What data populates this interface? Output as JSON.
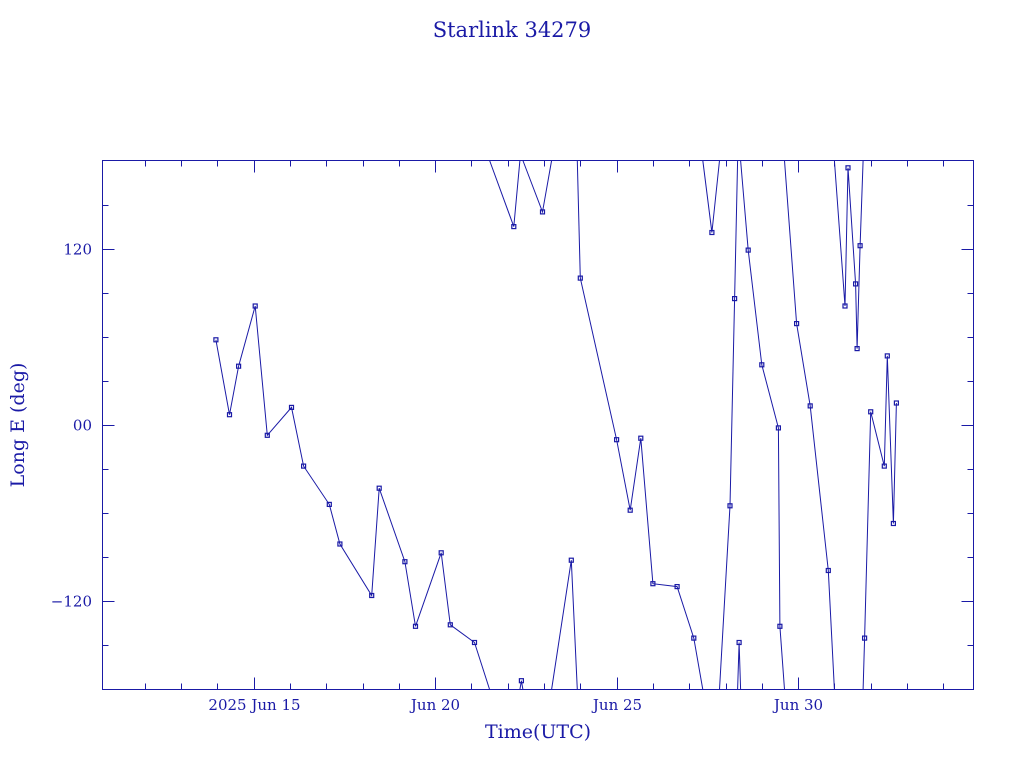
{
  "chart_data": {
    "type": "line",
    "title": "Starlink 34279",
    "xlabel": "Time(UTC)",
    "ylabel": "Long E (deg)",
    "x_unit": "date",
    "xlim": [
      "2025-06-10T20:00",
      "2025-07-04T20:00"
    ],
    "ylim": [
      -180,
      180
    ],
    "y_wrap": true,
    "x_tick_labels": [
      {
        "x": "2025-06-15T00:00",
        "label": "2025 Jun 15"
      },
      {
        "x": "2025-06-20T00:00",
        "label": "Jun 20"
      },
      {
        "x": "2025-06-25T00:00",
        "label": "Jun 25"
      },
      {
        "x": "2025-06-30T00:00",
        "label": "Jun 30"
      }
    ],
    "x_minor_ticks": [
      "2025-06-12T00:00",
      "2025-06-13T00:00",
      "2025-06-14T00:00",
      "2025-06-16T00:00",
      "2025-06-17T00:00",
      "2025-06-18T00:00",
      "2025-06-19T00:00",
      "2025-06-21T00:00",
      "2025-06-22T00:00",
      "2025-06-23T00:00",
      "2025-06-24T00:00",
      "2025-06-26T00:00",
      "2025-06-27T00:00",
      "2025-06-28T00:00",
      "2025-06-29T00:00",
      "2025-07-01T00:00",
      "2025-07-02T00:00",
      "2025-07-03T00:00",
      "2025-07-04T00:00"
    ],
    "y_tick_labels": [
      {
        "y": 120,
        "label": "120"
      },
      {
        "y": 0,
        "label": "00"
      },
      {
        "y": -120,
        "label": "−120"
      }
    ],
    "y_minor_ticks": [
      150,
      90,
      60,
      30,
      -30,
      -60,
      -90,
      -150
    ],
    "grid": false,
    "color": "#1a1aa6",
    "series": [
      {
        "points": [
          {
            "x": "2025-06-13T23:00",
            "y": 58
          },
          {
            "x": "2025-06-14T08:00",
            "y": 7
          },
          {
            "x": "2025-06-14T14:00",
            "y": 40
          },
          {
            "x": "2025-06-15T01:00",
            "y": 81
          },
          {
            "x": "2025-06-15T09:00",
            "y": -7
          },
          {
            "x": "2025-06-16T01:00",
            "y": 12
          },
          {
            "x": "2025-06-16T09:00",
            "y": -28
          },
          {
            "x": "2025-06-17T02:00",
            "y": -54
          },
          {
            "x": "2025-06-17T09:00",
            "y": -81
          },
          {
            "x": "2025-06-18T06:00",
            "y": -116
          },
          {
            "x": "2025-06-18T11:00",
            "y": -43
          },
          {
            "x": "2025-06-19T04:00",
            "y": -93
          },
          {
            "x": "2025-06-19T11:00",
            "y": -137
          },
          {
            "x": "2025-06-20T04:00",
            "y": -87
          },
          {
            "x": "2025-06-20T10:00",
            "y": -136
          },
          {
            "x": "2025-06-21T02:00",
            "y": -148
          },
          {
            "x": "2025-06-21T12:00",
            "y": -180
          },
          {
            "x": "2025-06-21T12:00",
            "y": 180
          },
          {
            "x": "2025-06-22T04:00",
            "y": 135
          },
          {
            "x": "2025-06-22T08:00",
            "y": 180
          },
          {
            "x": "2025-06-22T08:00",
            "y": -180
          },
          {
            "x": "2025-06-22T09:00",
            "y": -174
          },
          {
            "x": "2025-06-22T10:00",
            "y": -180
          },
          {
            "x": "2025-06-22T10:00",
            "y": 180
          },
          {
            "x": "2025-06-22T23:00",
            "y": 145
          },
          {
            "x": "2025-06-23T05:00",
            "y": 180
          },
          {
            "x": "2025-06-23T05:00",
            "y": -180
          },
          {
            "x": "2025-06-23T18:00",
            "y": -92
          },
          {
            "x": "2025-06-23T22:00",
            "y": -180
          },
          {
            "x": "2025-06-23T22:00",
            "y": 180
          },
          {
            "x": "2025-06-24T00:00",
            "y": 100
          },
          {
            "x": "2025-06-25T00:00",
            "y": -10
          },
          {
            "x": "2025-06-25T09:00",
            "y": -58
          },
          {
            "x": "2025-06-25T16:00",
            "y": -9
          },
          {
            "x": "2025-06-26T00:00",
            "y": -108
          },
          {
            "x": "2025-06-26T16:00",
            "y": -110
          },
          {
            "x": "2025-06-27T03:00",
            "y": -145
          },
          {
            "x": "2025-06-27T09:00",
            "y": -180
          },
          {
            "x": "2025-06-27T09:00",
            "y": 180
          },
          {
            "x": "2025-06-27T15:00",
            "y": 131
          },
          {
            "x": "2025-06-27T20:00",
            "y": 180
          },
          {
            "x": "2025-06-27T20:00",
            "y": -180
          },
          {
            "x": "2025-06-28T03:00",
            "y": -55
          },
          {
            "x": "2025-06-28T06:00",
            "y": 86
          },
          {
            "x": "2025-06-28T08:00",
            "y": 180
          },
          {
            "x": "2025-06-28T08:00",
            "y": -180
          },
          {
            "x": "2025-06-28T09:00",
            "y": -148
          },
          {
            "x": "2025-06-28T10:00",
            "y": -180
          },
          {
            "x": "2025-06-28T10:00",
            "y": 180
          },
          {
            "x": "2025-06-28T15:00",
            "y": 119
          },
          {
            "x": "2025-06-29T00:00",
            "y": 41
          },
          {
            "x": "2025-06-29T11:00",
            "y": -2
          },
          {
            "x": "2025-06-29T12:00",
            "y": -137
          },
          {
            "x": "2025-06-29T15:00",
            "y": -180
          },
          {
            "x": "2025-06-29T15:00",
            "y": 180
          },
          {
            "x": "2025-06-29T23:00",
            "y": 69
          },
          {
            "x": "2025-06-30T08:00",
            "y": 13
          },
          {
            "x": "2025-06-30T20:00",
            "y": -99
          },
          {
            "x": "2025-07-01T00:00",
            "y": -180
          },
          {
            "x": "2025-07-01T00:00",
            "y": 180
          },
          {
            "x": "2025-07-01T07:00",
            "y": 81
          },
          {
            "x": "2025-07-01T09:00",
            "y": 175
          },
          {
            "x": "2025-07-01T14:00",
            "y": 96
          },
          {
            "x": "2025-07-01T15:00",
            "y": 52
          },
          {
            "x": "2025-07-01T17:00",
            "y": 122
          },
          {
            "x": "2025-07-01T19:00",
            "y": 180
          },
          {
            "x": "2025-07-01T19:00",
            "y": -180
          },
          {
            "x": "2025-07-01T20:00",
            "y": -145
          },
          {
            "x": "2025-07-02T00:00",
            "y": 9
          },
          {
            "x": "2025-07-02T09:00",
            "y": -28
          },
          {
            "x": "2025-07-02T11:00",
            "y": 47
          },
          {
            "x": "2025-07-02T15:00",
            "y": -67
          },
          {
            "x": "2025-07-02T17:00",
            "y": 15
          }
        ]
      }
    ]
  }
}
